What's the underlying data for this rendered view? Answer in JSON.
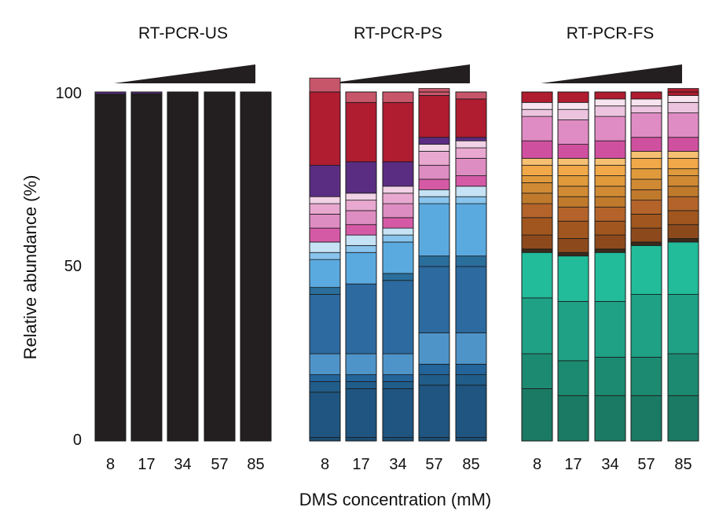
{
  "chart_data": {
    "type": "stacked-bar",
    "ylabel": "Relative abundance (%)",
    "xlabel": "DMS concentration (mM)",
    "ylim": [
      0,
      100
    ],
    "yticks": [
      "0",
      "50",
      "100"
    ],
    "categories": [
      "8",
      "17",
      "34",
      "57",
      "85"
    ],
    "panels": [
      {
        "id": "us",
        "title": "RT-PCR-US",
        "bars": [
          {
            "segments": [
              {
                "value": 99.4,
                "color": "#231f20"
              },
              {
                "value": 0.6,
                "color": "#5a2d82"
              }
            ]
          },
          {
            "segments": [
              {
                "value": 99.5,
                "color": "#231f20"
              },
              {
                "value": 0.5,
                "color": "#5a2d82"
              }
            ]
          },
          {
            "segments": [
              {
                "value": 100,
                "color": "#231f20"
              }
            ]
          },
          {
            "segments": [
              {
                "value": 100,
                "color": "#231f20"
              }
            ]
          },
          {
            "segments": [
              {
                "value": 100,
                "color": "#231f20"
              }
            ]
          }
        ]
      },
      {
        "id": "ps",
        "title": "RT-PCR-PS",
        "bars": [
          {
            "segments": [
              {
                "value": 1,
                "color": "#1d4e72"
              },
              {
                "value": 13,
                "color": "#1f5580"
              },
              {
                "value": 3,
                "color": "#215d8a"
              },
              {
                "value": 2,
                "color": "#23649a"
              },
              {
                "value": 6,
                "color": "#4e94c8"
              },
              {
                "value": 17,
                "color": "#2c6aa0"
              },
              {
                "value": 2,
                "color": "#2a6e9c"
              },
              {
                "value": 8,
                "color": "#5aaae0"
              },
              {
                "value": 2,
                "color": "#88c4ec"
              },
              {
                "value": 3,
                "color": "#c6e2f5"
              },
              {
                "value": 4,
                "color": "#d55aa6"
              },
              {
                "value": 4,
                "color": "#de8dc2"
              },
              {
                "value": 3,
                "color": "#e8a8d0"
              },
              {
                "value": 2,
                "color": "#f2d2e6"
              },
              {
                "value": 9,
                "color": "#5a2d82"
              },
              {
                "value": 21,
                "color": "#b01c30"
              },
              {
                "value": 4,
                "color": "#c8566a"
              }
            ]
          },
          {
            "segments": [
              {
                "value": 1,
                "color": "#1d4e72"
              },
              {
                "value": 14,
                "color": "#1f5580"
              },
              {
                "value": 2,
                "color": "#215d8a"
              },
              {
                "value": 2,
                "color": "#23649a"
              },
              {
                "value": 6,
                "color": "#4e94c8"
              },
              {
                "value": 20,
                "color": "#2c6aa0"
              },
              {
                "value": 9,
                "color": "#5aaae0"
              },
              {
                "value": 2,
                "color": "#88c4ec"
              },
              {
                "value": 3,
                "color": "#c6e2f5"
              },
              {
                "value": 3,
                "color": "#d55aa6"
              },
              {
                "value": 4,
                "color": "#de8dc2"
              },
              {
                "value": 3,
                "color": "#e8a8d0"
              },
              {
                "value": 2,
                "color": "#f2d2e6"
              },
              {
                "value": 9,
                "color": "#5a2d82"
              },
              {
                "value": 17,
                "color": "#b01c30"
              },
              {
                "value": 3,
                "color": "#c8566a"
              }
            ]
          },
          {
            "segments": [
              {
                "value": 1,
                "color": "#1d4e72"
              },
              {
                "value": 14,
                "color": "#1f5580"
              },
              {
                "value": 2,
                "color": "#215d8a"
              },
              {
                "value": 2,
                "color": "#23649a"
              },
              {
                "value": 6,
                "color": "#4e94c8"
              },
              {
                "value": 21,
                "color": "#2c6aa0"
              },
              {
                "value": 2,
                "color": "#2a6e9c"
              },
              {
                "value": 9,
                "color": "#5aaae0"
              },
              {
                "value": 2,
                "color": "#88c4ec"
              },
              {
                "value": 2,
                "color": "#c6e2f5"
              },
              {
                "value": 3,
                "color": "#d55aa6"
              },
              {
                "value": 4,
                "color": "#de8dc2"
              },
              {
                "value": 3,
                "color": "#e8a8d0"
              },
              {
                "value": 2,
                "color": "#f2d2e6"
              },
              {
                "value": 7,
                "color": "#5a2d82"
              },
              {
                "value": 17,
                "color": "#b01c30"
              },
              {
                "value": 3,
                "color": "#c8566a"
              }
            ]
          },
          {
            "segments": [
              {
                "value": 1,
                "color": "#1d4e72"
              },
              {
                "value": 15,
                "color": "#1f5580"
              },
              {
                "value": 3,
                "color": "#215d8a"
              },
              {
                "value": 3,
                "color": "#23649a"
              },
              {
                "value": 9,
                "color": "#4e94c8"
              },
              {
                "value": 19,
                "color": "#2c6aa0"
              },
              {
                "value": 3,
                "color": "#2a6e9c"
              },
              {
                "value": 15,
                "color": "#5aaae0"
              },
              {
                "value": 2,
                "color": "#88c4ec"
              },
              {
                "value": 2,
                "color": "#c6e2f5"
              },
              {
                "value": 3,
                "color": "#d55aa6"
              },
              {
                "value": 4,
                "color": "#de8dc2"
              },
              {
                "value": 4,
                "color": "#e8a8d0"
              },
              {
                "value": 2,
                "color": "#f2d2e6"
              },
              {
                "value": 2,
                "color": "#5a2d82"
              },
              {
                "value": 12,
                "color": "#b01c30"
              },
              {
                "value": 2,
                "color": "#c8566a"
              }
            ]
          },
          {
            "segments": [
              {
                "value": 1,
                "color": "#1d4e72"
              },
              {
                "value": 15,
                "color": "#1f5580"
              },
              {
                "value": 3,
                "color": "#215d8a"
              },
              {
                "value": 3,
                "color": "#23649a"
              },
              {
                "value": 9,
                "color": "#4e94c8"
              },
              {
                "value": 19,
                "color": "#2c6aa0"
              },
              {
                "value": 3,
                "color": "#2a6e9c"
              },
              {
                "value": 15,
                "color": "#5aaae0"
              },
              {
                "value": 2,
                "color": "#88c4ec"
              },
              {
                "value": 3,
                "color": "#c6e2f5"
              },
              {
                "value": 3,
                "color": "#d55aa6"
              },
              {
                "value": 5,
                "color": "#de8dc2"
              },
              {
                "value": 3,
                "color": "#e8a8d0"
              },
              {
                "value": 2,
                "color": "#f2d2e6"
              },
              {
                "value": 1,
                "color": "#5a2d82"
              },
              {
                "value": 11,
                "color": "#b01c30"
              },
              {
                "value": 2,
                "color": "#c8566a"
              }
            ]
          }
        ]
      },
      {
        "id": "fs",
        "title": "RT-PCR-FS",
        "bars": [
          {
            "segments": [
              {
                "value": 15,
                "color": "#1a7a64"
              },
              {
                "value": 10,
                "color": "#1c8a70"
              },
              {
                "value": 16,
                "color": "#1fa186"
              },
              {
                "value": 13,
                "color": "#22bc9a"
              },
              {
                "value": 1,
                "color": "#3a2a1c"
              },
              {
                "value": 4,
                "color": "#8c4a1c"
              },
              {
                "value": 5,
                "color": "#a0561e"
              },
              {
                "value": 4,
                "color": "#b4642a"
              },
              {
                "value": 3,
                "color": "#c07a2c"
              },
              {
                "value": 3,
                "color": "#d08a34"
              },
              {
                "value": 2,
                "color": "#e09a3c"
              },
              {
                "value": 3,
                "color": "#f0a848"
              },
              {
                "value": 2,
                "color": "#f6c072"
              },
              {
                "value": 5,
                "color": "#d050a0"
              },
              {
                "value": 7,
                "color": "#e08cc4"
              },
              {
                "value": 2,
                "color": "#ecc4df"
              },
              {
                "value": 2,
                "color": "#f8e4ef"
              },
              {
                "value": 3,
                "color": "#b01c30"
              }
            ]
          },
          {
            "segments": [
              {
                "value": 13,
                "color": "#1a7a64"
              },
              {
                "value": 10,
                "color": "#1c8a70"
              },
              {
                "value": 17,
                "color": "#1fa186"
              },
              {
                "value": 13,
                "color": "#22bc9a"
              },
              {
                "value": 1,
                "color": "#3a2a1c"
              },
              {
                "value": 4,
                "color": "#8c4a1c"
              },
              {
                "value": 5,
                "color": "#a0561e"
              },
              {
                "value": 4,
                "color": "#b4642a"
              },
              {
                "value": 3,
                "color": "#c07a2c"
              },
              {
                "value": 3,
                "color": "#d08a34"
              },
              {
                "value": 3,
                "color": "#e09a3c"
              },
              {
                "value": 3,
                "color": "#f0a848"
              },
              {
                "value": 2,
                "color": "#f6c072"
              },
              {
                "value": 4,
                "color": "#d050a0"
              },
              {
                "value": 7,
                "color": "#e08cc4"
              },
              {
                "value": 3,
                "color": "#ecc4df"
              },
              {
                "value": 2,
                "color": "#f8e4ef"
              },
              {
                "value": 3,
                "color": "#b01c30"
              }
            ]
          },
          {
            "segments": [
              {
                "value": 13,
                "color": "#1a7a64"
              },
              {
                "value": 11,
                "color": "#1c8a70"
              },
              {
                "value": 16,
                "color": "#1fa186"
              },
              {
                "value": 14,
                "color": "#22bc9a"
              },
              {
                "value": 1,
                "color": "#3a2a1c"
              },
              {
                "value": 4,
                "color": "#8c4a1c"
              },
              {
                "value": 4,
                "color": "#a0561e"
              },
              {
                "value": 4,
                "color": "#b4642a"
              },
              {
                "value": 3,
                "color": "#c07a2c"
              },
              {
                "value": 3,
                "color": "#d08a34"
              },
              {
                "value": 3,
                "color": "#e09a3c"
              },
              {
                "value": 3,
                "color": "#f0a848"
              },
              {
                "value": 2,
                "color": "#f6c072"
              },
              {
                "value": 5,
                "color": "#d050a0"
              },
              {
                "value": 7,
                "color": "#e08cc4"
              },
              {
                "value": 3,
                "color": "#ecc4df"
              },
              {
                "value": 2,
                "color": "#f8e4ef"
              },
              {
                "value": 2,
                "color": "#b01c30"
              }
            ]
          },
          {
            "segments": [
              {
                "value": 13,
                "color": "#1a7a64"
              },
              {
                "value": 11,
                "color": "#1c8a70"
              },
              {
                "value": 18,
                "color": "#1fa186"
              },
              {
                "value": 14,
                "color": "#22bc9a"
              },
              {
                "value": 1,
                "color": "#3a2a1c"
              },
              {
                "value": 4,
                "color": "#8c4a1c"
              },
              {
                "value": 4,
                "color": "#a0561e"
              },
              {
                "value": 4,
                "color": "#b4642a"
              },
              {
                "value": 3,
                "color": "#c07a2c"
              },
              {
                "value": 3,
                "color": "#d08a34"
              },
              {
                "value": 3,
                "color": "#e09a3c"
              },
              {
                "value": 3,
                "color": "#f0a848"
              },
              {
                "value": 2,
                "color": "#f6c072"
              },
              {
                "value": 4,
                "color": "#d050a0"
              },
              {
                "value": 7,
                "color": "#e08cc4"
              },
              {
                "value": 2,
                "color": "#ecc4df"
              },
              {
                "value": 2,
                "color": "#f8e4ef"
              },
              {
                "value": 2,
                "color": "#b01c30"
              }
            ]
          },
          {
            "segments": [
              {
                "value": 13,
                "color": "#1a7a64"
              },
              {
                "value": 12,
                "color": "#1c8a70"
              },
              {
                "value": 17,
                "color": "#1fa186"
              },
              {
                "value": 15,
                "color": "#22bc9a"
              },
              {
                "value": 1,
                "color": "#3a2a1c"
              },
              {
                "value": 4,
                "color": "#8c4a1c"
              },
              {
                "value": 4,
                "color": "#a0561e"
              },
              {
                "value": 4,
                "color": "#b4642a"
              },
              {
                "value": 3,
                "color": "#c07a2c"
              },
              {
                "value": 3,
                "color": "#d08a34"
              },
              {
                "value": 2,
                "color": "#e09a3c"
              },
              {
                "value": 3,
                "color": "#f0a848"
              },
              {
                "value": 2,
                "color": "#f6c072"
              },
              {
                "value": 4,
                "color": "#d050a0"
              },
              {
                "value": 7,
                "color": "#e08cc4"
              },
              {
                "value": 3,
                "color": "#ecc4df"
              },
              {
                "value": 2,
                "color": "#f8e4ef"
              },
              {
                "value": 2,
                "color": "#b01c30"
              }
            ]
          }
        ]
      }
    ]
  }
}
